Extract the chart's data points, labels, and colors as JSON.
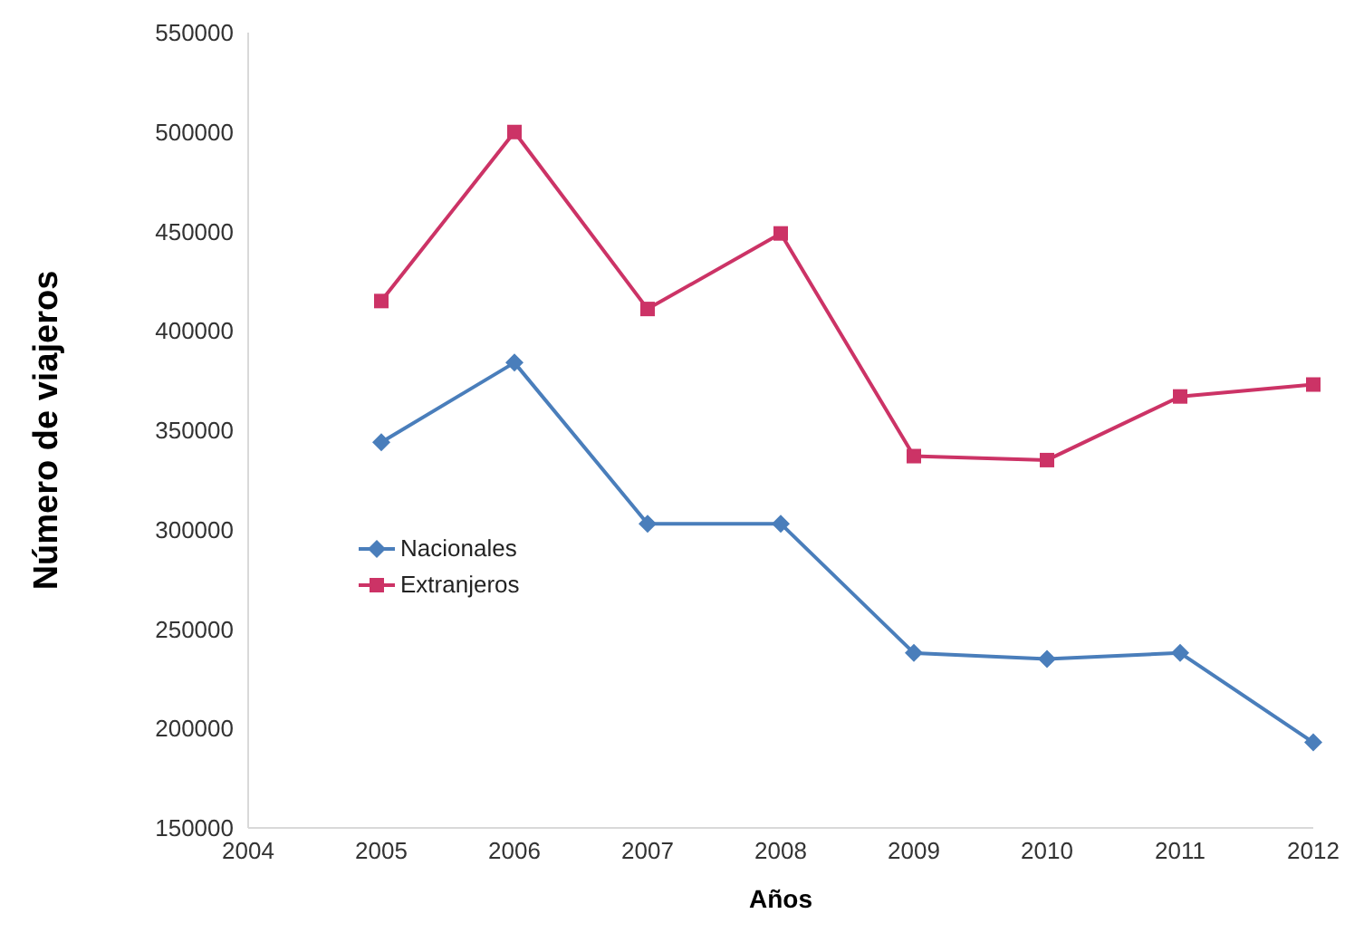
{
  "chart_data": {
    "type": "line",
    "xlabel": "Años",
    "ylabel": "Número de viajeros",
    "x": [
      2005,
      2006,
      2007,
      2008,
      2009,
      2010,
      2011,
      2012
    ],
    "series": [
      {
        "name": "Nacionales",
        "color": "#4a7ebb",
        "marker": "diamond",
        "values": [
          344000,
          384000,
          303000,
          303000,
          238000,
          235000,
          238000,
          193000
        ]
      },
      {
        "name": "Extranjeros",
        "color": "#cc3366",
        "marker": "square",
        "values": [
          415000,
          500000,
          411000,
          449000,
          337000,
          335000,
          367000,
          373000
        ]
      }
    ],
    "xlim": [
      2004,
      2012
    ],
    "xticks": [
      2004,
      2005,
      2006,
      2007,
      2008,
      2009,
      2010,
      2011,
      2012
    ],
    "ylim": [
      150000,
      550000
    ],
    "yticks": [
      150000,
      200000,
      250000,
      300000,
      350000,
      400000,
      450000,
      500000,
      550000
    ],
    "grid": false,
    "legend": "left"
  }
}
